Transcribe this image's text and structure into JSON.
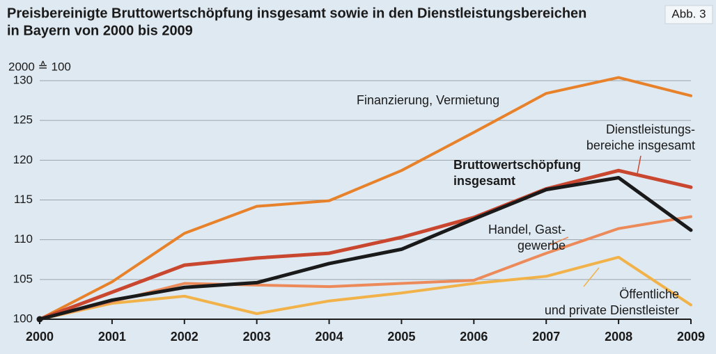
{
  "chart_data": {
    "type": "line",
    "title": [
      "Preisbereinigte Bruttowertschöpfung insgesamt sowie in den Dienstleistungsbereichen",
      "in Bayern von 2000 bis 2009"
    ],
    "figure_label": "Abb. 3",
    "y_axis_label": "2000 ≙ 100",
    "categories": [
      "2000",
      "2001",
      "2002",
      "2003",
      "2004",
      "2005",
      "2006",
      "2007",
      "2008",
      "2009"
    ],
    "series": [
      {
        "name": [
          "Finanzierung, Vermietung"
        ],
        "color": "#e8822a",
        "values": [
          100,
          104.7,
          110.8,
          114.2,
          114.9,
          118.7,
          123.5,
          128.4,
          130.4,
          128.1
        ]
      },
      {
        "name": [
          "Dienstleistungs-",
          "bereiche insgesamt"
        ],
        "color": "#c9462f",
        "values": [
          100,
          103.4,
          106.8,
          107.7,
          108.3,
          110.3,
          112.8,
          116.4,
          118.7,
          116.6
        ]
      },
      {
        "name": [
          "Bruttowertschöpfung",
          "insgesamt"
        ],
        "color": "#1a1a1a",
        "values": [
          100,
          102.4,
          104.0,
          104.6,
          107.0,
          108.8,
          112.6,
          116.3,
          117.8,
          111.2
        ]
      },
      {
        "name": [
          "Handel, Gast-",
          "gewerbe"
        ],
        "color": "#ec8a5a",
        "values": [
          100,
          102.2,
          104.5,
          104.3,
          104.1,
          104.5,
          104.9,
          108.3,
          111.4,
          112.9
        ]
      },
      {
        "name": [
          "Öffentliche",
          "und private Dienstleister"
        ],
        "color": "#f2b24a",
        "values": [
          100,
          102.0,
          102.9,
          100.7,
          102.3,
          103.3,
          104.5,
          105.4,
          107.8,
          101.8
        ]
      }
    ],
    "ylim": [
      100,
      130
    ],
    "yticks": [
      100,
      105,
      110,
      115,
      120,
      125,
      130
    ],
    "grid": true
  }
}
